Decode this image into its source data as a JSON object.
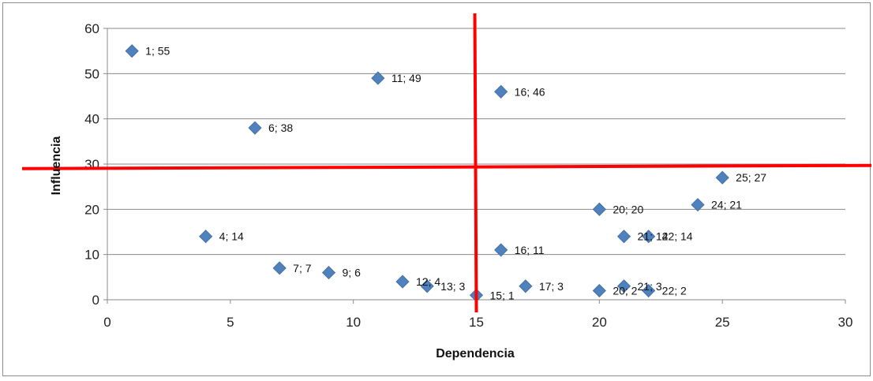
{
  "chart_data": {
    "type": "scatter",
    "title": "",
    "xlabel": "Dependencia",
    "ylabel": "Influencia",
    "xlim": [
      0,
      30
    ],
    "ylim": [
      0,
      60
    ],
    "xticks": [
      "0",
      "5",
      "10",
      "15",
      "20",
      "25",
      "30"
    ],
    "yticks": [
      "0",
      "10",
      "20",
      "30",
      "40",
      "50",
      "60"
    ],
    "grid": "horizontal",
    "legend": "none",
    "marker": "diamond",
    "marker_color": "#4f81bd",
    "points": [
      {
        "x": 1,
        "y": 55,
        "label": "1; 55"
      },
      {
        "x": 11,
        "y": 49,
        "label": "11; 49"
      },
      {
        "x": 16,
        "y": 46,
        "label": "16; 46"
      },
      {
        "x": 6,
        "y": 38,
        "label": "6; 38"
      },
      {
        "x": 25,
        "y": 27,
        "label": "25; 27"
      },
      {
        "x": 20,
        "y": 20,
        "label": "20; 20"
      },
      {
        "x": 24,
        "y": 21,
        "label": "24; 21"
      },
      {
        "x": 4,
        "y": 14,
        "label": "4; 14"
      },
      {
        "x": 21,
        "y": 14,
        "label": "21; 14"
      },
      {
        "x": 22,
        "y": 14,
        "label": "22; 14"
      },
      {
        "x": 16,
        "y": 11,
        "label": "16; 11"
      },
      {
        "x": 7,
        "y": 7,
        "label": "7; 7"
      },
      {
        "x": 9,
        "y": 6,
        "label": "9; 6"
      },
      {
        "x": 12,
        "y": 4,
        "label": "12; 4"
      },
      {
        "x": 13,
        "y": 3,
        "label": "13; 3"
      },
      {
        "x": 15,
        "y": 1,
        "label": "15; 1"
      },
      {
        "x": 17,
        "y": 3,
        "label": "17; 3"
      },
      {
        "x": 20,
        "y": 2,
        "label": "20; 2"
      },
      {
        "x": 21,
        "y": 3,
        "label": "21; 3"
      },
      {
        "x": 22,
        "y": 2,
        "label": "22; 2"
      }
    ],
    "divider_lines": {
      "color": "#ff0000",
      "vertical_x": 15,
      "horizontal_y": 29
    }
  }
}
